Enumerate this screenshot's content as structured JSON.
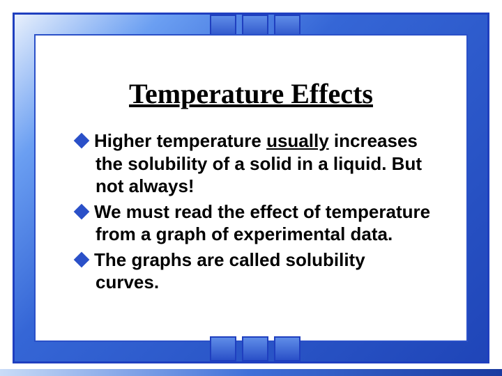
{
  "title": "Temperature Effects",
  "bullets": [
    {
      "prefix": "Higher",
      "rest1": " temperature ",
      "underlined": "usually",
      "rest2": " increases the solubility of a solid in a liquid.  But not always!"
    },
    {
      "prefix": "We",
      "rest1": " must read the effect of temperature from a graph of experimental data.",
      "underlined": "",
      "rest2": ""
    },
    {
      "prefix": "The",
      "rest1": " graphs are called solubility curves.",
      "underlined": "",
      "rest2": ""
    }
  ],
  "colors": {
    "bullet_marker": "#2a50c8",
    "border": "#1f3fbf",
    "text": "#000000"
  },
  "fonts": {
    "title_family": "Times New Roman",
    "title_size_pt": 30,
    "body_family": "Arial",
    "body_size_pt": 20,
    "body_weight": "bold"
  }
}
